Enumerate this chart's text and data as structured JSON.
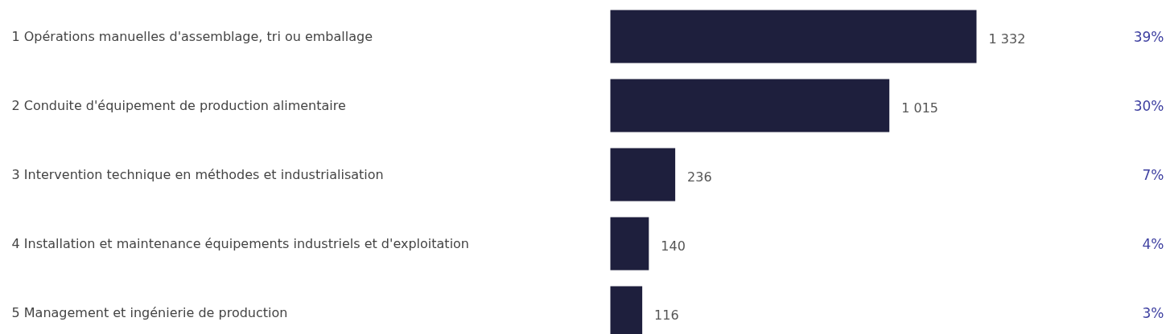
{
  "chart_data": {
    "type": "bar",
    "orientation": "horizontal",
    "categories": [
      "1 Opérations manuelles d'assemblage, tri ou emballage",
      "2 Conduite d'équipement de production alimentaire",
      "3 Intervention technique en méthodes et industrialisation",
      "4 Installation et maintenance équipements industriels et d'exploitation",
      "5 Management et ingénierie de production"
    ],
    "values": [
      1332,
      1015,
      236,
      140,
      116
    ],
    "color": "#1e1f3d",
    "value_labels": [
      "1 332",
      "1 015",
      "236",
      "140",
      "116"
    ],
    "annotations": [
      "39%",
      "30%",
      "7%",
      "4%",
      "3%"
    ],
    "grid": false
  }
}
